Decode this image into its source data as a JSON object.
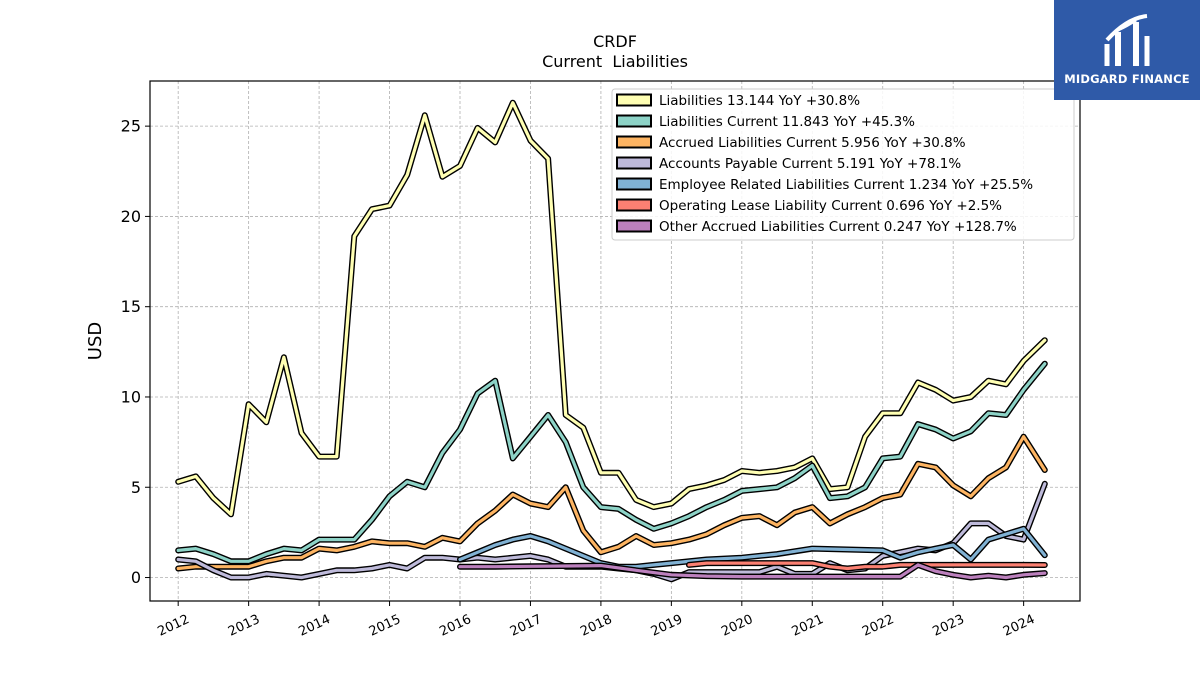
{
  "chart_data": {
    "type": "line",
    "title": "CRDF",
    "subtitle": "Current  Liabilities",
    "ylabel": "USD",
    "xlabel": "",
    "ylim": [
      -1.3,
      27.5
    ],
    "xlim": [
      2011.6,
      2024.8
    ],
    "yticks": [
      0,
      5,
      10,
      15,
      20,
      25
    ],
    "xticks": [
      "2012",
      "2013",
      "2014",
      "2015",
      "2016",
      "2017",
      "2018",
      "2019",
      "2020",
      "2021",
      "2022",
      "2023",
      "2024"
    ],
    "grid": true,
    "legend_position": "top-right",
    "series": [
      {
        "name": "Liabilities",
        "legend": "Liabilities  13.144 YoY +30.8%",
        "color": "#ffffb3",
        "points": [
          [
            2012.0,
            5.3
          ],
          [
            2012.25,
            5.6
          ],
          [
            2012.5,
            4.4
          ],
          [
            2012.75,
            3.5
          ],
          [
            2013.0,
            9.6
          ],
          [
            2013.25,
            8.6
          ],
          [
            2013.5,
            12.2
          ],
          [
            2013.75,
            8.0
          ],
          [
            2014.0,
            6.7
          ],
          [
            2014.25,
            6.7
          ],
          [
            2014.5,
            18.9
          ],
          [
            2014.75,
            20.4
          ],
          [
            2015.0,
            20.6
          ],
          [
            2015.25,
            22.3
          ],
          [
            2015.5,
            25.6
          ],
          [
            2015.75,
            22.2
          ],
          [
            2016.0,
            22.8
          ],
          [
            2016.25,
            24.9
          ],
          [
            2016.5,
            24.1
          ],
          [
            2016.75,
            26.3
          ],
          [
            2017.0,
            24.2
          ],
          [
            2017.25,
            23.2
          ],
          [
            2017.5,
            9.0
          ],
          [
            2017.75,
            8.3
          ],
          [
            2018.0,
            5.8
          ],
          [
            2018.25,
            5.8
          ],
          [
            2018.5,
            4.3
          ],
          [
            2018.75,
            3.9
          ],
          [
            2019.0,
            4.1
          ],
          [
            2019.25,
            4.9
          ],
          [
            2019.5,
            5.1
          ],
          [
            2019.75,
            5.4
          ],
          [
            2020.0,
            5.9
          ],
          [
            2020.25,
            5.8
          ],
          [
            2020.5,
            5.9
          ],
          [
            2020.75,
            6.1
          ],
          [
            2021.0,
            6.6
          ],
          [
            2021.25,
            4.9
          ],
          [
            2021.5,
            5.0
          ],
          [
            2021.75,
            7.8
          ],
          [
            2022.0,
            9.1
          ],
          [
            2022.25,
            9.1
          ],
          [
            2022.5,
            10.8
          ],
          [
            2022.75,
            10.4
          ],
          [
            2023.0,
            9.8
          ],
          [
            2023.25,
            10.0
          ],
          [
            2023.5,
            10.9
          ],
          [
            2023.75,
            10.7
          ],
          [
            2024.0,
            12.0
          ],
          [
            2024.3,
            13.144
          ]
        ]
      },
      {
        "name": "Liabilities Current",
        "legend": "Liabilities Current  11.843 YoY +45.3%",
        "color": "#8dd3c7",
        "points": [
          [
            2012.0,
            1.5
          ],
          [
            2012.25,
            1.6
          ],
          [
            2012.5,
            1.3
          ],
          [
            2012.75,
            0.9
          ],
          [
            2013.0,
            0.9
          ],
          [
            2013.25,
            1.3
          ],
          [
            2013.5,
            1.6
          ],
          [
            2013.75,
            1.5
          ],
          [
            2014.0,
            2.1
          ],
          [
            2014.25,
            2.1
          ],
          [
            2014.5,
            2.1
          ],
          [
            2014.75,
            3.2
          ],
          [
            2015.0,
            4.5
          ],
          [
            2015.25,
            5.3
          ],
          [
            2015.5,
            5.0
          ],
          [
            2015.75,
            6.9
          ],
          [
            2016.0,
            8.2
          ],
          [
            2016.25,
            10.2
          ],
          [
            2016.5,
            10.9
          ],
          [
            2016.75,
            6.6
          ],
          [
            2017.0,
            7.8
          ],
          [
            2017.25,
            9.0
          ],
          [
            2017.5,
            7.5
          ],
          [
            2017.75,
            5.0
          ],
          [
            2018.0,
            3.9
          ],
          [
            2018.25,
            3.8
          ],
          [
            2018.5,
            3.2
          ],
          [
            2018.75,
            2.7
          ],
          [
            2019.0,
            3.0
          ],
          [
            2019.25,
            3.4
          ],
          [
            2019.5,
            3.9
          ],
          [
            2019.75,
            4.3
          ],
          [
            2020.0,
            4.8
          ],
          [
            2020.25,
            4.9
          ],
          [
            2020.5,
            5.0
          ],
          [
            2020.75,
            5.5
          ],
          [
            2021.0,
            6.2
          ],
          [
            2021.25,
            4.4
          ],
          [
            2021.5,
            4.5
          ],
          [
            2021.75,
            5.0
          ],
          [
            2022.0,
            6.6
          ],
          [
            2022.25,
            6.7
          ],
          [
            2022.5,
            8.5
          ],
          [
            2022.75,
            8.2
          ],
          [
            2023.0,
            7.7
          ],
          [
            2023.25,
            8.1
          ],
          [
            2023.5,
            9.1
          ],
          [
            2023.75,
            9.0
          ],
          [
            2024.0,
            10.4
          ],
          [
            2024.3,
            11.843
          ]
        ]
      },
      {
        "name": "Accrued Liabilities Current",
        "legend": "Accrued Liabilities Current  5.956 YoY +30.8%",
        "color": "#fdb462",
        "points": [
          [
            2012.0,
            0.5
          ],
          [
            2012.25,
            0.6
          ],
          [
            2012.5,
            0.6
          ],
          [
            2012.75,
            0.6
          ],
          [
            2013.0,
            0.6
          ],
          [
            2013.25,
            0.9
          ],
          [
            2013.5,
            1.1
          ],
          [
            2013.75,
            1.1
          ],
          [
            2014.0,
            1.6
          ],
          [
            2014.25,
            1.5
          ],
          [
            2014.5,
            1.7
          ],
          [
            2014.75,
            2.0
          ],
          [
            2015.0,
            1.9
          ],
          [
            2015.25,
            1.9
          ],
          [
            2015.5,
            1.7
          ],
          [
            2015.75,
            2.2
          ],
          [
            2016.0,
            2.0
          ],
          [
            2016.25,
            3.0
          ],
          [
            2016.5,
            3.7
          ],
          [
            2016.75,
            4.6
          ],
          [
            2017.0,
            4.1
          ],
          [
            2017.25,
            3.9
          ],
          [
            2017.5,
            5.0
          ],
          [
            2017.75,
            2.6
          ],
          [
            2018.0,
            1.4
          ],
          [
            2018.25,
            1.7
          ],
          [
            2018.5,
            2.3
          ],
          [
            2018.75,
            1.8
          ],
          [
            2019.0,
            1.9
          ],
          [
            2019.25,
            2.1
          ],
          [
            2019.5,
            2.4
          ],
          [
            2019.75,
            2.9
          ],
          [
            2020.0,
            3.3
          ],
          [
            2020.25,
            3.4
          ],
          [
            2020.5,
            2.9
          ],
          [
            2020.75,
            3.6
          ],
          [
            2021.0,
            3.9
          ],
          [
            2021.25,
            3.0
          ],
          [
            2021.5,
            3.5
          ],
          [
            2021.75,
            3.9
          ],
          [
            2022.0,
            4.4
          ],
          [
            2022.25,
            4.6
          ],
          [
            2022.5,
            6.3
          ],
          [
            2022.75,
            6.1
          ],
          [
            2023.0,
            5.1
          ],
          [
            2023.25,
            4.5
          ],
          [
            2023.5,
            5.5
          ],
          [
            2023.75,
            6.1
          ],
          [
            2024.0,
            7.8
          ],
          [
            2024.3,
            5.956
          ]
        ]
      },
      {
        "name": "Accounts Payable Current",
        "legend": "Accounts Payable Current  5.191 YoY +78.1%",
        "color": "#bebada",
        "points": [
          [
            2012.0,
            1.0
          ],
          [
            2012.25,
            0.9
          ],
          [
            2012.5,
            0.4
          ],
          [
            2012.75,
            0.0
          ],
          [
            2013.0,
            0.0
          ],
          [
            2013.25,
            0.2
          ],
          [
            2013.5,
            0.1
          ],
          [
            2013.75,
            0.0
          ],
          [
            2014.0,
            0.2
          ],
          [
            2014.25,
            0.4
          ],
          [
            2014.5,
            0.4
          ],
          [
            2014.75,
            0.5
          ],
          [
            2015.0,
            0.7
          ],
          [
            2015.25,
            0.5
          ],
          [
            2015.5,
            1.1
          ],
          [
            2015.75,
            1.1
          ],
          [
            2016.0,
            1.0
          ],
          [
            2016.25,
            1.1
          ],
          [
            2016.5,
            1.0
          ],
          [
            2016.75,
            1.1
          ],
          [
            2017.0,
            1.2
          ],
          [
            2017.25,
            1.0
          ],
          [
            2017.5,
            0.6
          ],
          [
            2017.75,
            0.6
          ],
          [
            2018.0,
            0.6
          ],
          [
            2018.25,
            0.5
          ],
          [
            2018.5,
            0.4
          ],
          [
            2018.75,
            0.2
          ],
          [
            2019.0,
            -0.1
          ],
          [
            2019.25,
            0.3
          ],
          [
            2019.5,
            0.3
          ],
          [
            2019.75,
            0.3
          ],
          [
            2020.0,
            0.3
          ],
          [
            2020.25,
            0.3
          ],
          [
            2020.5,
            0.6
          ],
          [
            2020.75,
            0.2
          ],
          [
            2021.0,
            0.2
          ],
          [
            2021.25,
            0.8
          ],
          [
            2021.5,
            0.4
          ],
          [
            2021.75,
            0.5
          ],
          [
            2022.0,
            1.2
          ],
          [
            2022.25,
            1.4
          ],
          [
            2022.5,
            1.6
          ],
          [
            2022.75,
            1.5
          ],
          [
            2023.0,
            1.9
          ],
          [
            2023.25,
            3.0
          ],
          [
            2023.5,
            3.0
          ],
          [
            2023.75,
            2.3
          ],
          [
            2024.0,
            2.1
          ],
          [
            2024.3,
            5.191
          ]
        ]
      },
      {
        "name": "Employee Related Liabilities Current",
        "legend": "Employee Related Liabilities Current  1.234 YoY +25.5%",
        "color": "#80b1d3",
        "points": [
          [
            2016.0,
            1.0
          ],
          [
            2016.25,
            1.4
          ],
          [
            2016.5,
            1.8
          ],
          [
            2016.75,
            2.1
          ],
          [
            2017.0,
            2.3
          ],
          [
            2017.25,
            2.0
          ],
          [
            2017.5,
            1.6
          ],
          [
            2017.75,
            1.2
          ],
          [
            2018.0,
            0.8
          ],
          [
            2018.25,
            0.6
          ],
          [
            2018.5,
            0.6
          ],
          [
            2018.75,
            0.7
          ],
          [
            2019.0,
            0.8
          ],
          [
            2019.5,
            1.0
          ],
          [
            2020.0,
            1.1
          ],
          [
            2020.5,
            1.3
          ],
          [
            2021.0,
            1.6
          ],
          [
            2021.5,
            1.55
          ],
          [
            2022.0,
            1.5
          ],
          [
            2022.25,
            1.1
          ],
          [
            2022.5,
            1.4
          ],
          [
            2022.75,
            1.6
          ],
          [
            2023.0,
            1.8
          ],
          [
            2023.25,
            1.0
          ],
          [
            2023.5,
            2.1
          ],
          [
            2023.75,
            2.4
          ],
          [
            2024.0,
            2.7
          ],
          [
            2024.3,
            1.234
          ]
        ]
      },
      {
        "name": "Operating Lease Liability Current",
        "legend": "Operating Lease Liability Current  0.696 YoY +2.5%",
        "color": "#fb8072",
        "points": [
          [
            2019.25,
            0.7
          ],
          [
            2019.5,
            0.8
          ],
          [
            2019.75,
            0.8
          ],
          [
            2020.0,
            0.8
          ],
          [
            2020.25,
            0.8
          ],
          [
            2020.5,
            0.8
          ],
          [
            2020.75,
            0.8
          ],
          [
            2021.0,
            0.8
          ],
          [
            2021.25,
            0.6
          ],
          [
            2021.5,
            0.5
          ],
          [
            2021.75,
            0.6
          ],
          [
            2022.0,
            0.6
          ],
          [
            2022.25,
            0.7
          ],
          [
            2022.5,
            0.7
          ],
          [
            2022.75,
            0.7
          ],
          [
            2023.0,
            0.7
          ],
          [
            2023.25,
            0.7
          ],
          [
            2023.5,
            0.7
          ],
          [
            2023.75,
            0.7
          ],
          [
            2024.0,
            0.7
          ],
          [
            2024.3,
            0.696
          ]
        ]
      },
      {
        "name": "Other Accrued Liabilities Current",
        "legend": "Other Accrued Liabilities Current  0.247 YoY +128.7%",
        "color": "#bc80bd",
        "points": [
          [
            2016.0,
            0.6
          ],
          [
            2016.5,
            0.6
          ],
          [
            2017.0,
            0.62
          ],
          [
            2017.5,
            0.64
          ],
          [
            2018.0,
            0.66
          ],
          [
            2018.5,
            0.4
          ],
          [
            2019.0,
            0.15
          ],
          [
            2019.5,
            0.08
          ],
          [
            2020.0,
            0.05
          ],
          [
            2020.5,
            0.05
          ],
          [
            2021.0,
            0.05
          ],
          [
            2021.5,
            0.05
          ],
          [
            2022.0,
            0.05
          ],
          [
            2022.25,
            0.05
          ],
          [
            2022.5,
            0.7
          ],
          [
            2022.75,
            0.35
          ],
          [
            2023.0,
            0.15
          ],
          [
            2023.25,
            0.0
          ],
          [
            2023.5,
            0.1
          ],
          [
            2023.75,
            0.0
          ],
          [
            2024.0,
            0.15
          ],
          [
            2024.3,
            0.247
          ]
        ]
      }
    ]
  },
  "logo": {
    "brand": "MIDGARD FINANCE",
    "icon": "midgard-finance-logo-icon"
  }
}
